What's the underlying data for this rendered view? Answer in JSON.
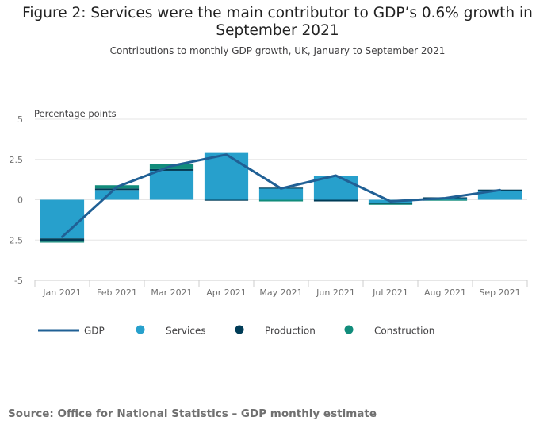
{
  "chart_data": {
    "type": "bar",
    "title": "Figure 2: Services were the main contributor to GDP’s 0.6% growth in September 2021",
    "subtitle": "Contributions to monthly GDP growth, UK, January to September 2021",
    "ylabel": "Percentage points",
    "ylim": [
      -5,
      5
    ],
    "yticks": [
      5,
      2.5,
      0,
      -2.5,
      -5
    ],
    "ytick_labels": [
      "5",
      "2.5",
      "0",
      "-2.5",
      "-5"
    ],
    "categories": [
      "Jan 2021",
      "Feb 2021",
      "Mar 2021",
      "Apr 2021",
      "May 2021",
      "Jun 2021",
      "Jul 2021",
      "Aug 2021",
      "Sep 2021"
    ],
    "series": [
      {
        "name": "Services",
        "kind": "bar",
        "color": "#27a0cc",
        "values": [
          -2.4,
          0.6,
          1.8,
          2.9,
          0.7,
          1.5,
          -0.2,
          0.1,
          0.6
        ]
      },
      {
        "name": "Production",
        "kind": "bar",
        "color": "#003c57",
        "values": [
          -0.2,
          0.1,
          0.1,
          -0.05,
          0.05,
          -0.1,
          -0.05,
          0.05,
          0.03
        ]
      },
      {
        "name": "Construction",
        "kind": "bar",
        "color": "#118c7b",
        "values": [
          -0.05,
          0.2,
          0.3,
          0.0,
          -0.1,
          0.0,
          -0.05,
          -0.05,
          0.0
        ]
      },
      {
        "name": "GDP",
        "kind": "line",
        "color": "#206095",
        "values": [
          -2.3,
          0.8,
          2.1,
          2.8,
          0.7,
          1.5,
          -0.1,
          0.1,
          0.6
        ]
      }
    ],
    "legend": [
      "GDP",
      "Services",
      "Production",
      "Construction"
    ],
    "grid": true
  },
  "source": "Source: Office for National Statistics – GDP monthly estimate"
}
